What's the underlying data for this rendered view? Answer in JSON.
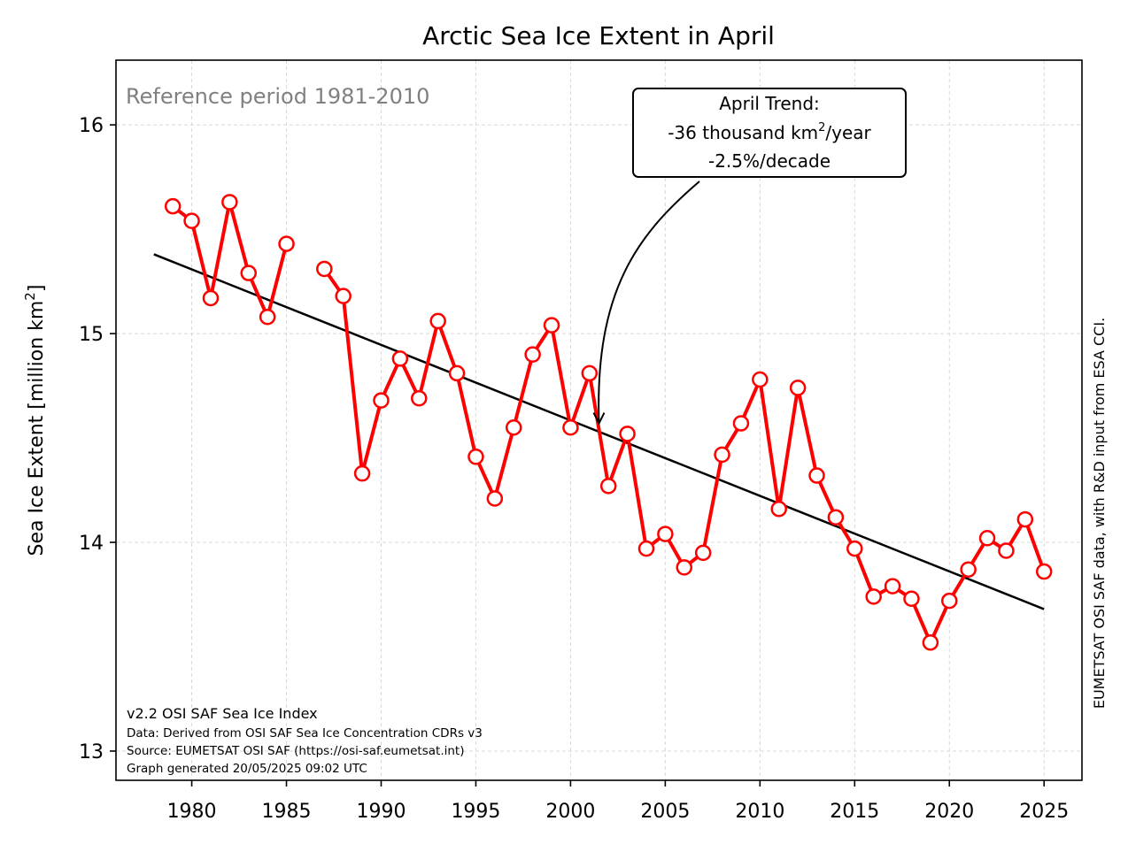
{
  "chart_data": {
    "type": "line",
    "title": "Arctic Sea Ice Extent in April",
    "xlabel": "",
    "ylabel": "Sea Ice Extent [million km²]",
    "xlim": [
      1976,
      2027
    ],
    "ylim": [
      12.86,
      16.31
    ],
    "x_ticks": [
      1980,
      1985,
      1990,
      1995,
      2000,
      2005,
      2010,
      2015,
      2020,
      2025
    ],
    "y_ticks": [
      13,
      14,
      15,
      16
    ],
    "grid": true,
    "series": [
      {
        "color": "#ff0000",
        "marker": "open-circle",
        "points": [
          [
            1979,
            15.61
          ],
          [
            1980,
            15.54
          ],
          [
            1981,
            15.17
          ],
          [
            1982,
            15.63
          ],
          [
            1983,
            15.29
          ],
          [
            1984,
            15.08
          ],
          [
            1985,
            15.43
          ],
          [
            1987,
            15.31
          ],
          [
            1988,
            15.18
          ],
          [
            1989,
            14.33
          ],
          [
            1990,
            14.68
          ],
          [
            1991,
            14.88
          ],
          [
            1992,
            14.69
          ],
          [
            1993,
            15.06
          ],
          [
            1994,
            14.81
          ],
          [
            1995,
            14.41
          ],
          [
            1996,
            14.21
          ],
          [
            1997,
            14.55
          ],
          [
            1998,
            14.9
          ],
          [
            1999,
            15.04
          ],
          [
            2000,
            14.55
          ],
          [
            2001,
            14.81
          ],
          [
            2002,
            14.27
          ],
          [
            2003,
            14.52
          ],
          [
            2004,
            13.97
          ],
          [
            2005,
            14.04
          ],
          [
            2006,
            13.88
          ],
          [
            2007,
            13.95
          ],
          [
            2008,
            14.42
          ],
          [
            2009,
            14.57
          ],
          [
            2010,
            14.78
          ],
          [
            2011,
            14.16
          ],
          [
            2012,
            14.74
          ],
          [
            2013,
            14.32
          ],
          [
            2014,
            14.12
          ],
          [
            2015,
            13.97
          ],
          [
            2016,
            13.74
          ],
          [
            2017,
            13.79
          ],
          [
            2018,
            13.73
          ],
          [
            2019,
            13.52
          ],
          [
            2020,
            13.72
          ],
          [
            2021,
            13.87
          ],
          [
            2022,
            14.02
          ],
          [
            2023,
            13.96
          ],
          [
            2024,
            14.11
          ],
          [
            2025,
            13.86
          ]
        ]
      }
    ],
    "trend_line": {
      "color": "#000000",
      "points": [
        [
          1978,
          15.38
        ],
        [
          2025,
          13.68
        ]
      ]
    },
    "annotations": {
      "reference": "Reference period 1981-2010",
      "trend_box": {
        "line1": "April Trend:",
        "line2_prefix": "-36 thousand km",
        "line2_sup": "2",
        "line2_suffix": "/year",
        "line3": "-2.5%/decade",
        "arrow_target": [
          2001.5,
          14.57
        ]
      },
      "credit": "EUMETSAT OSI SAF data, with R&D input from ESA CCI.",
      "footer": [
        "v2.2 OSI SAF Sea Ice Index",
        "Data: Derived from OSI SAF Sea Ice Concentration CDRs v3",
        "Source: EUMETSAT OSI SAF (https://osi-saf.eumetsat.int)",
        "Graph generated 20/05/2025 09:02 UTC"
      ]
    }
  }
}
